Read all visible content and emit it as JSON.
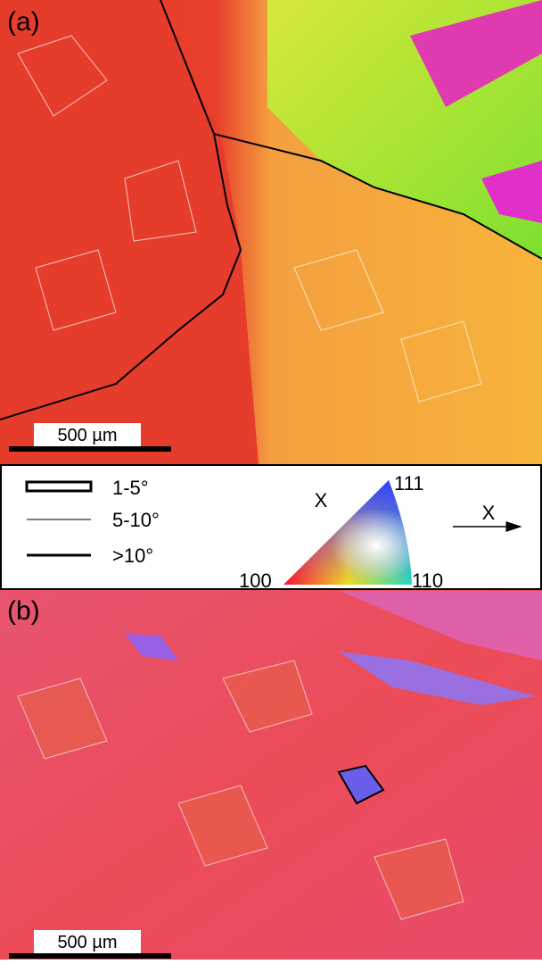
{
  "panel_a": {
    "label": "(a)",
    "scale_bar": "500 µm"
  },
  "legend": {
    "entries": [
      "1-5°",
      "5-10°",
      ">10°"
    ],
    "direction": "X",
    "triangle": {
      "top": "111",
      "left": "100",
      "right": "110"
    },
    "axis_label": "X"
  },
  "panel_b": {
    "label": "(b)",
    "scale_bar": "500 µm"
  }
}
